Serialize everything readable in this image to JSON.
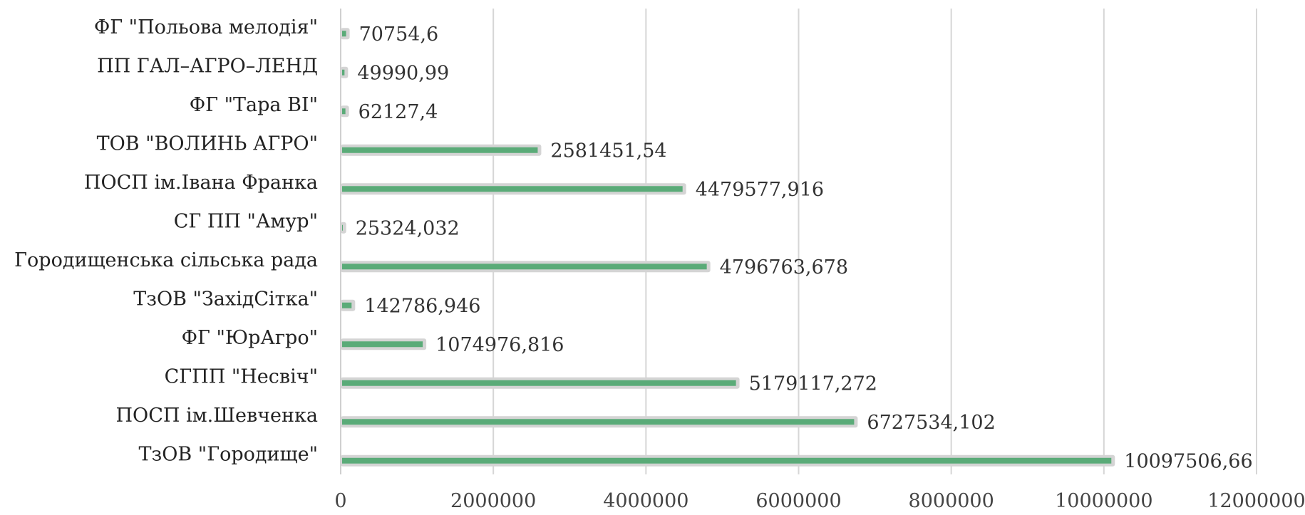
{
  "chart_data": {
    "type": "bar",
    "orientation": "horizontal",
    "categories": [
      "ТзОВ \"Городище\"",
      "ПОСП ім.Шевченка",
      "СГПП \"Несвіч\"",
      "ФГ \"ЮрАгро\"",
      "ТзОВ \"ЗахідСітка\"",
      "Городищенська сільська рада",
      "СГ ПП \"Амур\"",
      "ПОСП ім.Івана Франка",
      "ТОВ \"ВОЛИНЬ АГРО\"",
      "ФГ \"Тара ВІ\"",
      "ПП ГАЛ–АГРО–ЛЕНД",
      "ФГ \"Польова мелодія\""
    ],
    "values": [
      10097506.66,
      6727534.102,
      5179117.272,
      1074976.816,
      142786.946,
      4796763.678,
      25324.032,
      4479577.916,
      2581451.54,
      62127.4,
      49990.99,
      70754.6
    ],
    "value_labels": [
      "10097506,66",
      "6727534,102",
      "5179117,272",
      "1074976,816",
      "142786,946",
      "4796763,678",
      "25324,032",
      "4479577,916",
      "2581451,54",
      "62127,4",
      "49990,99",
      "70754,6"
    ],
    "x_ticks": [
      "0",
      "2000000",
      "4000000",
      "6000000",
      "8000000",
      "10000000",
      "12000000"
    ],
    "xlim": [
      0,
      12000000
    ],
    "grid": true,
    "legend": "none",
    "title": "",
    "xlabel": "",
    "ylabel": "",
    "colors": {
      "bar": "#5aab78",
      "bar_shadow": "#d4d4d4",
      "grid": "#d6d6d6"
    }
  }
}
